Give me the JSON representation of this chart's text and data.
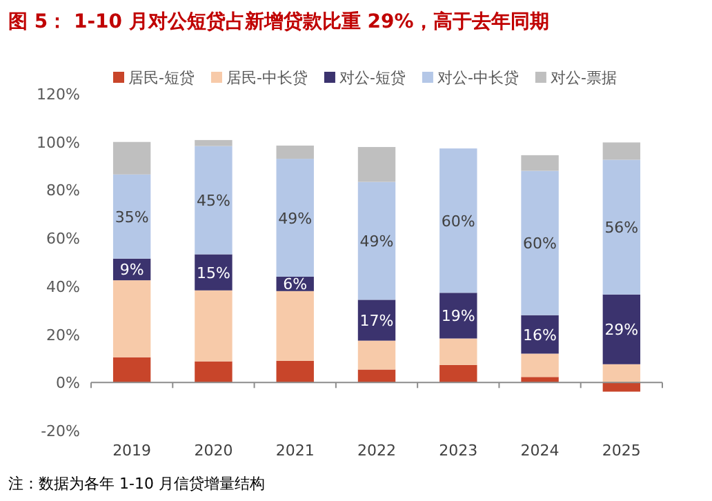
{
  "chart_data": {
    "type": "bar",
    "stacked": true,
    "title": "图 5： 1-10 月对公短贷占新增贷款比重 29%，高于去年同期",
    "categories": [
      "2019",
      "2020",
      "2021",
      "2022",
      "2023",
      "2024",
      "2025"
    ],
    "series": [
      {
        "name": "居民-短贷",
        "color": "#c8452a",
        "values": [
          10.5,
          8.8,
          9,
          5.4,
          7.3,
          2.3,
          -3.8
        ]
      },
      {
        "name": "居民-中长贷",
        "color": "#f7caa9",
        "values": [
          32,
          29.5,
          29,
          12,
          11,
          9.7,
          7.6
        ]
      },
      {
        "name": "对公-短贷",
        "color": "#3b336e",
        "values": [
          9,
          15,
          6,
          17,
          19,
          16,
          29
        ],
        "value_labels": [
          "9%",
          "15%",
          "6%",
          "17%",
          "19%",
          "16%",
          "29%"
        ]
      },
      {
        "name": "对公-中长贷",
        "color": "#b4c7e7",
        "values": [
          35,
          45,
          49,
          49,
          60,
          60,
          56
        ],
        "value_labels": [
          "35%",
          "45%",
          "49%",
          "49%",
          "60%",
          "60%",
          "56%"
        ]
      },
      {
        "name": "对公-票据",
        "color": "#bfbfbf",
        "values": [
          13.5,
          2.5,
          5.5,
          14.5,
          null,
          6.5,
          7.2
        ]
      }
    ],
    "ylim": [
      -20,
      120
    ],
    "yticks": [
      {
        "value": -20,
        "label": "-20%"
      },
      {
        "value": 0,
        "label": "0%"
      },
      {
        "value": 20,
        "label": "20%"
      },
      {
        "value": 40,
        "label": "40%"
      },
      {
        "value": 60,
        "label": "60%"
      },
      {
        "value": 80,
        "label": "80%"
      },
      {
        "value": 100,
        "label": "100%"
      },
      {
        "value": 120,
        "label": "120%"
      }
    ],
    "legend": "top",
    "annotations": [
      "注：数据为各年 1-10 月信贷增量结构"
    ]
  }
}
